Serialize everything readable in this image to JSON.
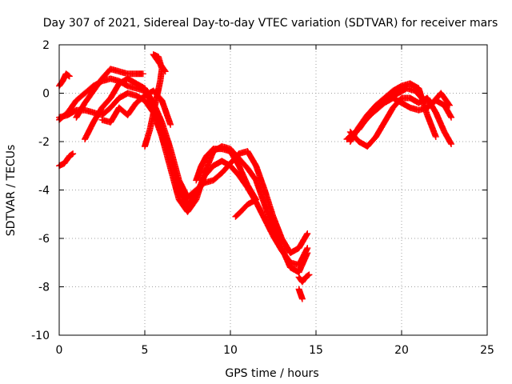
{
  "chart_data": {
    "type": "scatter",
    "title": "Day 307 of 2021, Sidereal Day-to-day VTEC variation (SDTVAR) for receiver mars",
    "xlabel": "GPS time / hours",
    "ylabel": "SDTVAR / TECUs",
    "xlim": [
      0,
      25
    ],
    "ylim": [
      -10,
      2
    ],
    "xticks": [
      "0",
      "5",
      "10",
      "15",
      "20",
      "25"
    ],
    "yticks": [
      "2",
      "0",
      "-2",
      "-4",
      "-6",
      "-8",
      "-10"
    ],
    "grid": true,
    "marker": "+",
    "colors": {
      "series": "#ff0000",
      "grid": "#a0a0a0",
      "axes": "#000000"
    },
    "series": [
      {
        "points": [
          [
            0.0,
            0.3
          ],
          [
            0.2,
            0.5
          ],
          [
            0.4,
            0.8
          ],
          [
            0.6,
            0.7
          ]
        ]
      },
      {
        "points": [
          [
            0.0,
            -3.0
          ],
          [
            0.3,
            -2.9
          ],
          [
            0.6,
            -2.6
          ],
          [
            0.8,
            -2.5
          ]
        ]
      },
      {
        "points": [
          [
            0.0,
            -1.1
          ],
          [
            0.5,
            -0.8
          ],
          [
            1.0,
            -0.3
          ],
          [
            1.5,
            0.0
          ],
          [
            2.0,
            0.3
          ],
          [
            2.5,
            0.5
          ],
          [
            3.0,
            0.6
          ],
          [
            3.5,
            0.5
          ],
          [
            4.0,
            0.3
          ],
          [
            4.5,
            0.2
          ],
          [
            5.0,
            0.1
          ],
          [
            5.5,
            -0.5
          ],
          [
            6.0,
            -1.6
          ],
          [
            6.5,
            -2.6
          ],
          [
            7.0,
            -4.0
          ],
          [
            7.5,
            -4.6
          ],
          [
            8.0,
            -4.2
          ],
          [
            8.5,
            -3.4
          ],
          [
            9.0,
            -3.0
          ],
          [
            9.5,
            -2.8
          ],
          [
            10.0,
            -3.0
          ],
          [
            10.5,
            -3.4
          ],
          [
            11.0,
            -3.9
          ],
          [
            11.5,
            -4.5
          ],
          [
            12.0,
            -5.2
          ],
          [
            12.5,
            -5.9
          ],
          [
            13.0,
            -6.5
          ],
          [
            13.5,
            -7.0
          ],
          [
            14.0,
            -7.1
          ],
          [
            14.5,
            -6.4
          ]
        ]
      },
      {
        "points": [
          [
            0.0,
            -1.0
          ],
          [
            0.5,
            -0.9
          ],
          [
            1.0,
            -0.7
          ],
          [
            1.5,
            -0.7
          ],
          [
            2.0,
            -0.8
          ],
          [
            2.5,
            -0.9
          ],
          [
            3.0,
            -0.6
          ],
          [
            3.5,
            -0.2
          ],
          [
            4.0,
            0.0
          ],
          [
            4.5,
            -0.1
          ],
          [
            5.0,
            -0.3
          ],
          [
            5.5,
            -0.8
          ],
          [
            6.0,
            -1.8
          ],
          [
            6.5,
            -3.1
          ],
          [
            7.0,
            -4.4
          ],
          [
            7.5,
            -4.9
          ],
          [
            8.0,
            -4.4
          ],
          [
            8.5,
            -3.3
          ],
          [
            9.0,
            -2.4
          ],
          [
            9.5,
            -2.2
          ],
          [
            10.0,
            -2.3
          ],
          [
            10.5,
            -2.7
          ],
          [
            11.0,
            -3.1
          ],
          [
            11.5,
            -3.6
          ],
          [
            12.0,
            -4.6
          ],
          [
            12.5,
            -5.6
          ],
          [
            13.0,
            -6.4
          ],
          [
            13.5,
            -7.2
          ],
          [
            14.0,
            -7.4
          ],
          [
            14.5,
            -6.6
          ]
        ]
      },
      {
        "points": [
          [
            1.0,
            -1.0
          ],
          [
            1.5,
            -0.4
          ],
          [
            2.0,
            0.1
          ],
          [
            2.5,
            0.6
          ],
          [
            3.0,
            1.0
          ],
          [
            3.5,
            0.9
          ],
          [
            4.0,
            0.8
          ],
          [
            4.5,
            0.8
          ],
          [
            4.9,
            0.8
          ]
        ]
      },
      {
        "points": [
          [
            1.5,
            -1.9
          ],
          [
            2.0,
            -1.2
          ],
          [
            2.5,
            -0.6
          ],
          [
            3.0,
            -0.2
          ],
          [
            3.5,
            0.4
          ],
          [
            4.0,
            0.6
          ],
          [
            4.5,
            0.4
          ],
          [
            5.0,
            0.2
          ],
          [
            5.5,
            -0.4
          ],
          [
            6.0,
            -1.2
          ],
          [
            6.5,
            -2.3
          ],
          [
            7.0,
            -3.6
          ],
          [
            7.5,
            -4.3
          ],
          [
            8.0,
            -4.0
          ],
          [
            8.5,
            -3.7
          ],
          [
            9.0,
            -3.6
          ],
          [
            9.5,
            -3.3
          ],
          [
            10.0,
            -2.9
          ],
          [
            10.5,
            -2.5
          ],
          [
            11.0,
            -2.4
          ],
          [
            11.5,
            -3.0
          ],
          [
            12.0,
            -4.0
          ],
          [
            12.5,
            -5.1
          ],
          [
            13.0,
            -6.0
          ],
          [
            13.5,
            -6.6
          ],
          [
            14.0,
            -6.4
          ],
          [
            14.5,
            -5.8
          ]
        ]
      },
      {
        "points": [
          [
            2.5,
            -1.1
          ],
          [
            3.0,
            -1.2
          ],
          [
            3.5,
            -0.6
          ],
          [
            4.0,
            -0.9
          ],
          [
            4.5,
            -0.4
          ],
          [
            5.0,
            -0.1
          ],
          [
            5.5,
            0.1
          ],
          [
            6.0,
            -0.3
          ],
          [
            6.5,
            -1.3
          ]
        ]
      },
      {
        "points": [
          [
            5.0,
            -2.2
          ],
          [
            5.3,
            -1.5
          ],
          [
            5.6,
            -0.5
          ],
          [
            5.9,
            0.5
          ],
          [
            6.0,
            1.0
          ],
          [
            5.8,
            1.5
          ],
          [
            5.5,
            1.6
          ],
          [
            6.2,
            0.9
          ]
        ]
      },
      {
        "points": [
          [
            8.0,
            -3.6
          ],
          [
            8.3,
            -3.0
          ],
          [
            8.6,
            -2.6
          ],
          [
            9.0,
            -2.3
          ],
          [
            9.5,
            -2.3
          ],
          [
            10.0,
            -2.4
          ],
          [
            10.5,
            -3.0
          ],
          [
            11.0,
            -3.8
          ],
          [
            11.5,
            -4.4
          ],
          [
            11.0,
            -4.6
          ],
          [
            10.6,
            -4.9
          ],
          [
            10.3,
            -5.1
          ]
        ]
      },
      {
        "points": [
          [
            14.0,
            -7.6
          ],
          [
            14.2,
            -7.8
          ],
          [
            14.4,
            -7.6
          ],
          [
            14.6,
            -7.5
          ]
        ]
      },
      {
        "points": [
          [
            14.0,
            -8.1
          ],
          [
            14.1,
            -8.3
          ],
          [
            14.2,
            -8.5
          ]
        ]
      },
      {
        "points": [
          [
            16.8,
            -1.9
          ],
          [
            17.3,
            -1.6
          ],
          [
            17.8,
            -1.2
          ],
          [
            18.3,
            -0.8
          ],
          [
            18.8,
            -0.4
          ],
          [
            19.3,
            -0.2
          ],
          [
            19.8,
            0.0
          ],
          [
            20.3,
            0.2
          ],
          [
            20.8,
            0.1
          ],
          [
            21.3,
            -0.3
          ],
          [
            21.8,
            -0.4
          ],
          [
            22.3,
            0.0
          ],
          [
            22.8,
            -0.5
          ]
        ]
      },
      {
        "points": [
          [
            17.0,
            -2.0
          ],
          [
            17.5,
            -1.4
          ],
          [
            18.0,
            -0.9
          ],
          [
            18.5,
            -0.5
          ],
          [
            19.0,
            -0.2
          ],
          [
            19.5,
            0.1
          ],
          [
            20.0,
            0.3
          ],
          [
            20.5,
            0.4
          ],
          [
            21.0,
            0.2
          ],
          [
            21.5,
            -0.9
          ],
          [
            22.0,
            -1.8
          ]
        ]
      },
      {
        "points": [
          [
            17.0,
            -1.6
          ],
          [
            17.5,
            -2.0
          ],
          [
            18.0,
            -2.2
          ],
          [
            18.5,
            -1.8
          ],
          [
            19.0,
            -1.2
          ],
          [
            19.5,
            -0.6
          ],
          [
            20.0,
            -0.2
          ],
          [
            20.5,
            -0.2
          ],
          [
            21.0,
            -0.4
          ],
          [
            21.5,
            -0.2
          ],
          [
            22.0,
            -0.8
          ],
          [
            22.5,
            -1.6
          ],
          [
            22.9,
            -2.1
          ]
        ]
      },
      {
        "points": [
          [
            17.5,
            -1.5
          ],
          [
            18.0,
            -1.0
          ],
          [
            18.5,
            -0.7
          ],
          [
            19.0,
            -0.4
          ],
          [
            19.5,
            -0.2
          ],
          [
            20.0,
            -0.4
          ],
          [
            20.5,
            -0.6
          ],
          [
            21.0,
            -0.7
          ],
          [
            21.5,
            -0.6
          ],
          [
            22.0,
            -0.3
          ],
          [
            22.5,
            -0.5
          ],
          [
            22.9,
            -1.0
          ]
        ]
      }
    ]
  }
}
